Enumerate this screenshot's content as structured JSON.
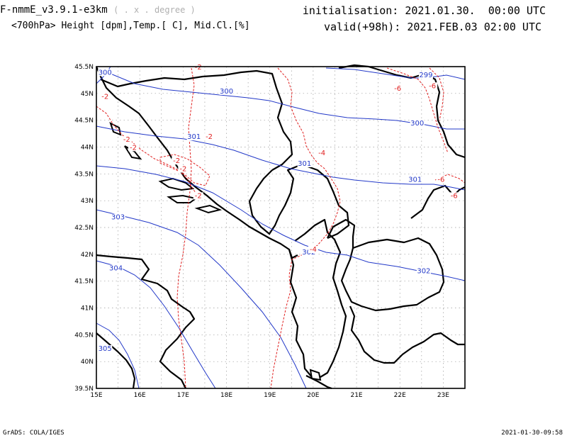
{
  "header": {
    "model": "F-nmmE_v3.9.1-e3km",
    "unit_note": "( . x . degree )",
    "fields": "<700hPa> Height [dpm],Temp.[ C], Mid.Cl.[%]",
    "init": "initialisation: 2021.01.30.  00:00 UTC",
    "valid": "valid(+98h): 2021.FEB.03 02:00 UTC"
  },
  "footer": {
    "credit": "GrADS: COLA/IGES",
    "timestamp": "2021-01-30-09:58"
  },
  "axes": {
    "lon": [
      "15E",
      "16E",
      "17E",
      "18E",
      "19E",
      "20E",
      "21E",
      "22E",
      "23E"
    ],
    "lat": [
      "45.5N",
      "45N",
      "44.5N",
      "44N",
      "43.5N",
      "43N",
      "42.5N",
      "42N",
      "41.5N",
      "41N",
      "40.5N",
      "40N",
      "39.5N"
    ]
  },
  "colors": {
    "height": "#2238c8",
    "temperature": "#e02020",
    "coast": "#000000"
  },
  "height_labels": [
    {
      "text": "300",
      "lon": 15.2,
      "lat": 45.35
    },
    {
      "text": "300",
      "lon": 18.0,
      "lat": 45.0
    },
    {
      "text": "299",
      "lon": 22.6,
      "lat": 45.3
    },
    {
      "text": "300",
      "lon": 22.4,
      "lat": 44.4
    },
    {
      "text": "301",
      "lon": 17.25,
      "lat": 44.15
    },
    {
      "text": "301",
      "lon": 19.8,
      "lat": 43.65
    },
    {
      "text": "301",
      "lon": 22.35,
      "lat": 43.35
    },
    {
      "text": "303",
      "lon": 15.5,
      "lat": 42.65
    },
    {
      "text": "302",
      "lon": 19.9,
      "lat": 42.0
    },
    {
      "text": "302",
      "lon": 22.55,
      "lat": 41.65
    },
    {
      "text": "304",
      "lon": 15.45,
      "lat": 41.7
    },
    {
      "text": "305",
      "lon": 15.2,
      "lat": 40.2
    }
  ],
  "temp_labels": [
    {
      "text": "-2",
      "lon": 17.35,
      "lat": 45.45
    },
    {
      "text": "-6",
      "lon": 21.95,
      "lat": 45.05
    },
    {
      "text": "-6",
      "lon": 22.75,
      "lat": 45.1
    },
    {
      "text": "-2",
      "lon": 15.2,
      "lat": 44.9
    },
    {
      "text": "-2",
      "lon": 17.6,
      "lat": 44.15
    },
    {
      "text": "-2",
      "lon": 15.7,
      "lat": 44.1
    },
    {
      "text": "-2",
      "lon": 15.85,
      "lat": 43.95
    },
    {
      "text": "-2",
      "lon": 16.85,
      "lat": 43.7
    },
    {
      "text": "-2",
      "lon": 17.0,
      "lat": 43.55
    },
    {
      "text": "-4",
      "lon": 20.2,
      "lat": 43.85
    },
    {
      "text": "-6",
      "lon": 22.95,
      "lat": 43.35
    },
    {
      "text": "-6",
      "lon": 23.25,
      "lat": 43.05
    },
    {
      "text": "-2",
      "lon": 17.35,
      "lat": 43.05
    },
    {
      "text": "-4",
      "lon": 20.0,
      "lat": 42.05
    }
  ]
}
